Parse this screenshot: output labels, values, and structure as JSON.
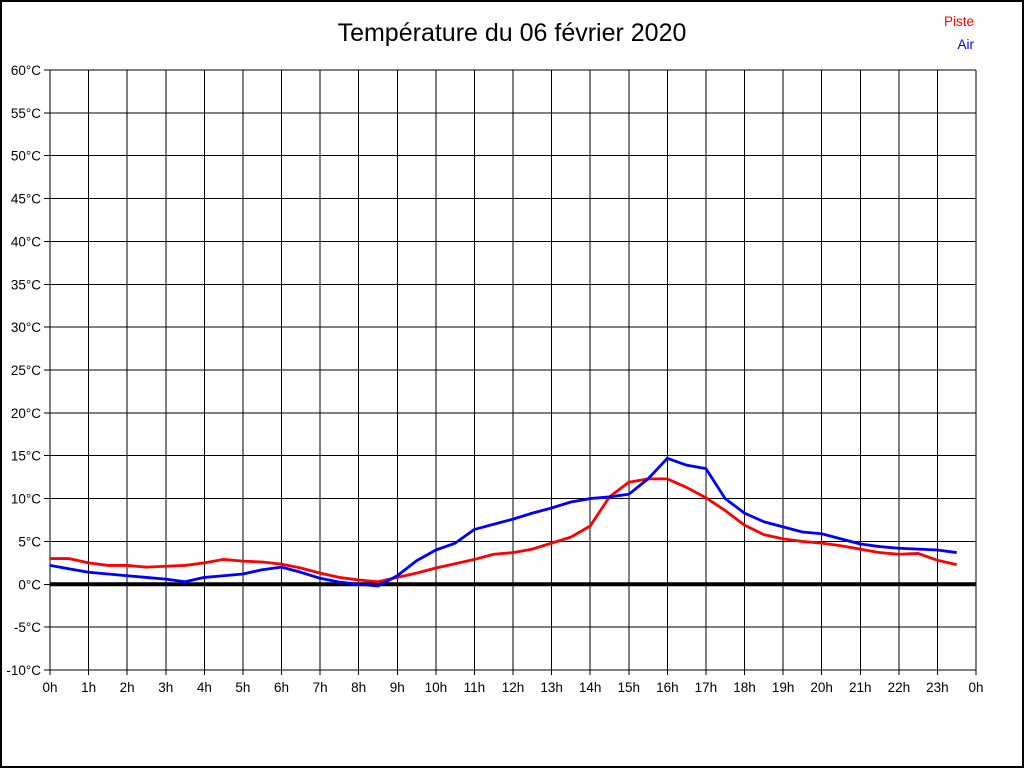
{
  "page": {
    "background": "#ffffff",
    "border_color": "#000000",
    "grid_color": "#000000"
  },
  "chart_data": {
    "type": "line",
    "title": "Température du 06 février 2020",
    "xlabel": "",
    "ylabel": "",
    "x_unit": "hour of day",
    "y_unit": "°C",
    "xlim": [
      0,
      24
    ],
    "ylim": [
      -10,
      60
    ],
    "grid": true,
    "legend_position": "top-right",
    "zero_line": {
      "value": 0,
      "color": "#000000"
    },
    "xtick_values": [
      0,
      1,
      2,
      3,
      4,
      5,
      6,
      7,
      8,
      9,
      10,
      11,
      12,
      13,
      14,
      15,
      16,
      17,
      18,
      19,
      20,
      21,
      22,
      23,
      24
    ],
    "xtick_labels": [
      "0h",
      "1h",
      "2h",
      "3h",
      "4h",
      "5h",
      "6h",
      "7h",
      "8h",
      "9h",
      "10h",
      "11h",
      "12h",
      "13h",
      "14h",
      "15h",
      "16h",
      "17h",
      "18h",
      "19h",
      "20h",
      "21h",
      "22h",
      "23h",
      "0h"
    ],
    "ytick_values": [
      -10,
      -5,
      0,
      5,
      10,
      15,
      20,
      25,
      30,
      35,
      40,
      45,
      50,
      55,
      60
    ],
    "ytick_labels": [
      "-10°C",
      "-5°C",
      "0°C",
      "5°C",
      "10°C",
      "15°C",
      "20°C",
      "25°C",
      "30°C",
      "35°C",
      "40°C",
      "45°C",
      "50°C",
      "55°C",
      "60°C"
    ],
    "x": [
      0,
      0.5,
      1,
      1.5,
      2,
      2.5,
      3,
      3.5,
      4,
      4.5,
      5,
      5.5,
      6,
      6.5,
      7,
      7.5,
      8,
      8.5,
      9,
      9.5,
      10,
      10.5,
      11,
      11.5,
      12,
      12.5,
      13,
      13.5,
      14,
      14.5,
      15,
      15.5,
      16,
      16.5,
      17,
      17.5,
      18,
      18.5,
      19,
      19.5,
      20,
      20.5,
      21,
      21.5,
      22,
      22.5,
      23,
      23.5
    ],
    "series": [
      {
        "name": "Piste",
        "color": "#ff0000",
        "values": [
          3.0,
          3.0,
          2.5,
          2.2,
          2.2,
          2.0,
          2.1,
          2.2,
          2.5,
          2.9,
          2.7,
          2.6,
          2.35,
          1.9,
          1.3,
          0.8,
          0.5,
          0.3,
          0.8,
          1.3,
          1.9,
          2.4,
          2.9,
          3.5,
          3.7,
          4.1,
          4.8,
          5.5,
          6.8,
          10.2,
          11.9,
          12.3,
          12.3,
          11.3,
          10.1,
          8.6,
          6.9,
          5.8,
          5.3,
          5.0,
          4.8,
          4.5,
          4.1,
          3.7,
          3.5,
          3.6,
          2.8,
          2.3
        ]
      },
      {
        "name": "Air",
        "color": "#0000ff",
        "values": [
          2.2,
          1.8,
          1.4,
          1.2,
          1.0,
          0.8,
          0.6,
          0.3,
          0.8,
          1.0,
          1.2,
          1.7,
          2.0,
          1.4,
          0.7,
          0.25,
          0.0,
          -0.2,
          1.0,
          2.75,
          4.0,
          4.8,
          6.4,
          7.0,
          7.6,
          8.3,
          8.9,
          9.6,
          10.0,
          10.2,
          10.5,
          12.3,
          14.7,
          13.9,
          13.5,
          10.0,
          8.3,
          7.3,
          6.7,
          6.1,
          5.9,
          5.3,
          4.7,
          4.4,
          4.2,
          4.1,
          4.0,
          3.7
        ]
      }
    ]
  }
}
